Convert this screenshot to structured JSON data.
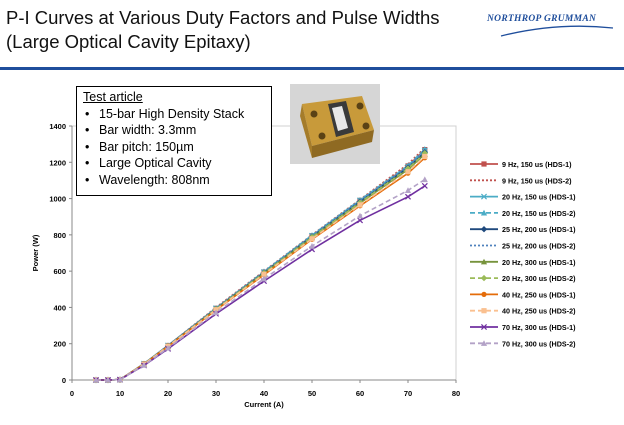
{
  "slide": {
    "title": "P-I Curves at Various Duty Factors and Pulse Widths (Large Optical Cavity Epitaxy)",
    "logo_text": "NORTHROP GRUMMAN",
    "brand_color": "#1f4e9c"
  },
  "info_box": {
    "heading": "Test article",
    "items": [
      "15-bar High Density Stack",
      "Bar width:  3.3mm",
      "Bar pitch:  150µm",
      "Large Optical Cavity",
      "Wavelength: 808nm"
    ]
  },
  "photo": {
    "icon": "laser-diode-stack-photo"
  },
  "chart_data": {
    "type": "line",
    "title": "",
    "xlabel": "Current (A)",
    "ylabel": "Power (W)",
    "xlim": [
      0,
      80
    ],
    "ylim": [
      0,
      1400
    ],
    "xticks": [
      0,
      10,
      20,
      30,
      40,
      50,
      60,
      70,
      80
    ],
    "yticks": [
      0,
      200,
      400,
      600,
      800,
      1000,
      1200,
      1400
    ],
    "grid": false,
    "legend_position": "right",
    "x": [
      5,
      7.5,
      10,
      15,
      20,
      30,
      40,
      50,
      60,
      70,
      73.5
    ],
    "series": [
      {
        "name": "9 Hz, 150 us (HDS-1)",
        "color": "#c0504d",
        "style": "solid",
        "marker": "square",
        "values": [
          0,
          0,
          2,
          90,
          190,
          395,
          595,
          795,
          990,
          1180,
          1270
        ]
      },
      {
        "name": "9 Hz, 150 us (HDS-2)",
        "color": "#c0504d",
        "style": "dotted",
        "marker": "none",
        "values": [
          0,
          0,
          2,
          90,
          190,
          400,
          600,
          800,
          995,
          1190,
          1280
        ]
      },
      {
        "name": "20 Hz, 150 us (HDS-1)",
        "color": "#4bacc6",
        "style": "solid",
        "marker": "x",
        "values": [
          0,
          0,
          2,
          90,
          190,
          395,
          595,
          795,
          990,
          1175,
          1265
        ]
      },
      {
        "name": "20 Hz, 150 us (HDS-2)",
        "color": "#4bacc6",
        "style": "dashed",
        "marker": "triangle",
        "values": [
          0,
          0,
          2,
          90,
          190,
          395,
          598,
          798,
          992,
          1182,
          1272
        ]
      },
      {
        "name": "25 Hz, 200 us (HDS-1)",
        "color": "#1f497d",
        "style": "solid",
        "marker": "diamond",
        "values": [
          0,
          0,
          2,
          88,
          188,
          392,
          592,
          790,
          982,
          1170,
          1255
        ]
      },
      {
        "name": "25 Hz, 200 us (HDS-2)",
        "color": "#4f81bd",
        "style": "dotted",
        "marker": "none",
        "values": [
          0,
          0,
          2,
          89,
          189,
          394,
          594,
          793,
          987,
          1176,
          1262
        ]
      },
      {
        "name": "20 Hz, 300 us (HDS-1)",
        "color": "#77933c",
        "style": "solid",
        "marker": "triangle",
        "values": [
          0,
          0,
          2,
          88,
          186,
          390,
          588,
          785,
          975,
          1160,
          1245
        ]
      },
      {
        "name": "20 Hz, 300 us (HDS-2)",
        "color": "#9bbb59",
        "style": "dashed",
        "marker": "diamond",
        "values": [
          0,
          0,
          2,
          88,
          187,
          391,
          590,
          788,
          978,
          1165,
          1250
        ]
      },
      {
        "name": "40 Hz, 250 us (HDS-1)",
        "color": "#e46c0a",
        "style": "solid",
        "marker": "circle",
        "values": [
          0,
          0,
          2,
          87,
          185,
          385,
          580,
          775,
          960,
          1140,
          1225
        ]
      },
      {
        "name": "40 Hz, 250 us (HDS-2)",
        "color": "#fac090",
        "style": "dashed",
        "marker": "square",
        "values": [
          0,
          0,
          2,
          87,
          186,
          387,
          583,
          778,
          965,
          1148,
          1232
        ]
      },
      {
        "name": "70 Hz, 300 us (HDS-1)",
        "color": "#7030a0",
        "style": "solid",
        "marker": "x",
        "values": [
          0,
          0,
          2,
          80,
          172,
          365,
          545,
          720,
          880,
          1010,
          1070
        ]
      },
      {
        "name": "70 Hz, 300 us (HDS-2)",
        "color": "#b3a2c7",
        "style": "dashed",
        "marker": "triangle",
        "values": [
          0,
          0,
          2,
          82,
          176,
          372,
          558,
          738,
          905,
          1045,
          1105
        ]
      }
    ]
  }
}
